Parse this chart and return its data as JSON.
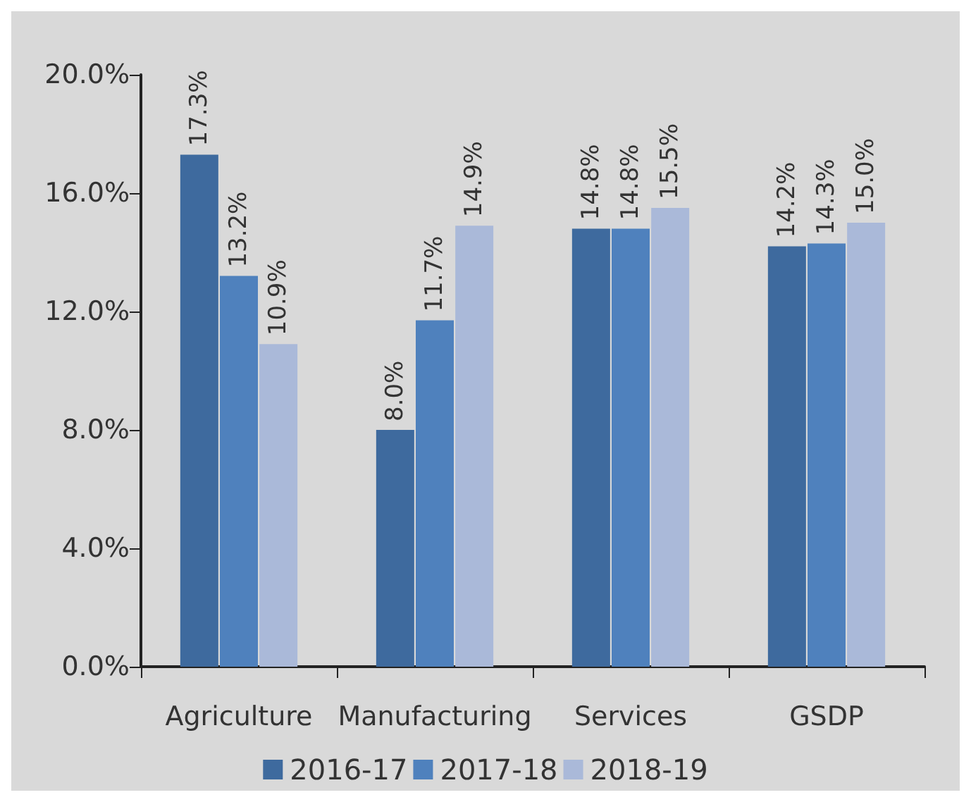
{
  "chart_data": {
    "type": "bar",
    "categories": [
      "Agriculture",
      "Manufacturing",
      "Services",
      "GSDP"
    ],
    "series": [
      {
        "name": "2016-17",
        "color": "#3e6a9e",
        "values": [
          17.3,
          8.0,
          14.8,
          14.2
        ],
        "value_labels": [
          "17.3%",
          "8.0%",
          "14.8%",
          "14.2%"
        ]
      },
      {
        "name": "2017-18",
        "color": "#4f81bd",
        "values": [
          13.2,
          11.7,
          14.8,
          14.3
        ],
        "value_labels": [
          "13.2%",
          "11.7%",
          "14.8%",
          "14.3%"
        ]
      },
      {
        "name": "2018-19",
        "color": "#aab9d9",
        "values": [
          10.9,
          14.9,
          15.5,
          15.0
        ],
        "value_labels": [
          "10.9%",
          "14.9%",
          "15.5%",
          "15.0%"
        ]
      }
    ],
    "ylim": [
      0,
      20
    ],
    "yticks": [
      {
        "value": 0,
        "label": "0.0%"
      },
      {
        "value": 4,
        "label": "4.0%"
      },
      {
        "value": 8,
        "label": "8.0%"
      },
      {
        "value": 12,
        "label": "12.0%"
      },
      {
        "value": 16,
        "label": "16.0%"
      },
      {
        "value": 20,
        "label": "20.0%"
      }
    ],
    "grid": false,
    "legend": "bottom"
  }
}
